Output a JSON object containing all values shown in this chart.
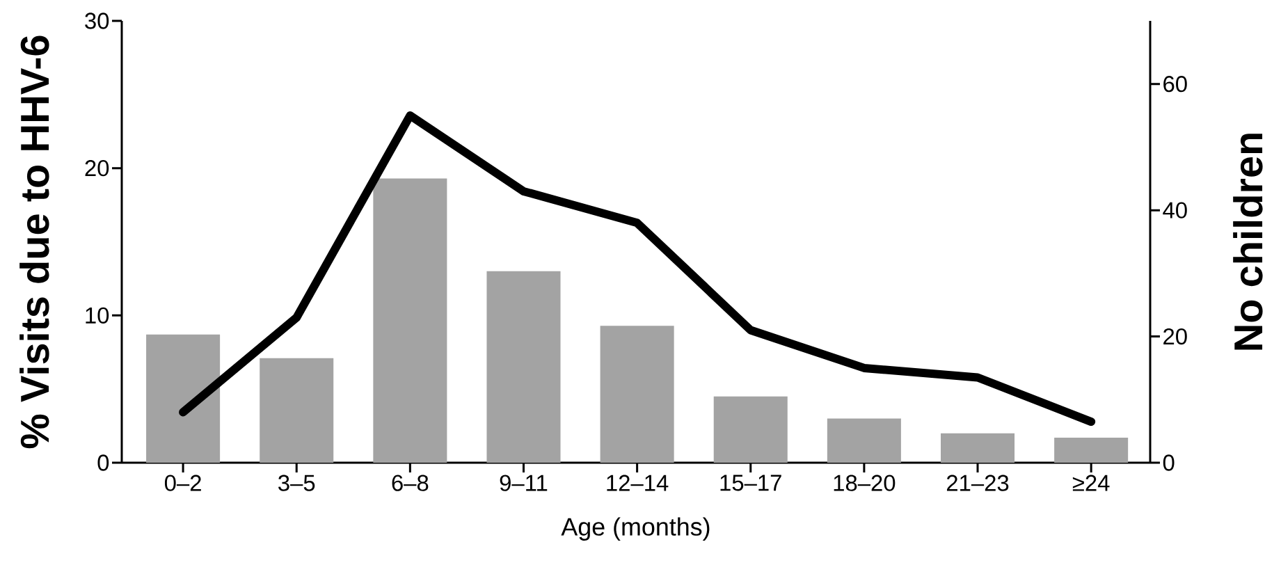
{
  "chart_data": {
    "type": "bar",
    "xlabel": "Age (months)",
    "ylabel": "% Visits due to HHV-6",
    "y2label": "No children",
    "categories": [
      "0–2",
      "3–5",
      "6–8",
      "9–11",
      "12–14",
      "15–17",
      "18–20",
      "21–23",
      "≥24"
    ],
    "series": [
      {
        "color": "#a3a3a3",
        "values": [
          8.7,
          7.1,
          19.3,
          13.0,
          9.3,
          4.5,
          3.0,
          2.0,
          1.7
        ]
      },
      {
        "type": "line",
        "axis": "y2",
        "color": "#000000",
        "values": [
          8,
          23,
          55,
          43,
          38,
          21,
          15,
          13.5,
          6.5
        ]
      }
    ],
    "ylim": [
      0,
      30
    ],
    "yticks": [
      0,
      10,
      20,
      30
    ],
    "y2lim": [
      0,
      70
    ],
    "y2ticks": [
      0,
      20,
      40,
      60
    ]
  }
}
